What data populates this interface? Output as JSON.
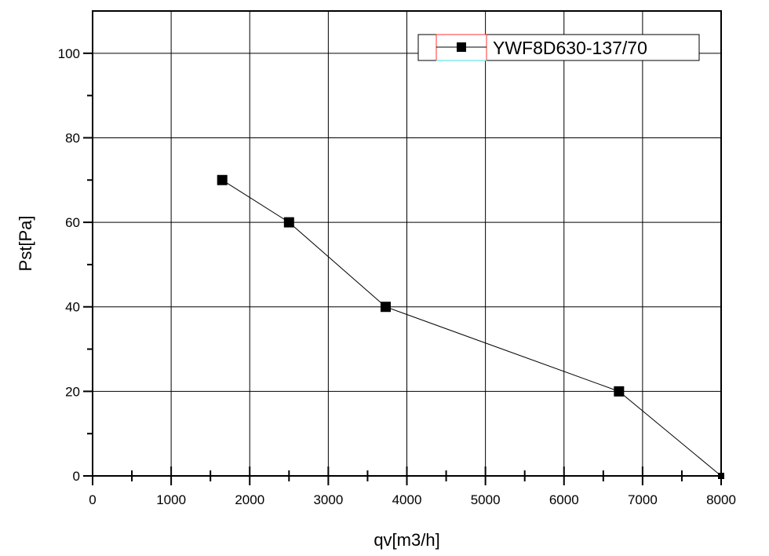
{
  "chart_data": {
    "type": "line",
    "title": "",
    "xlabel": "qv[m3/h]",
    "ylabel": "Pst[Pa]",
    "xlim": [
      0,
      8000
    ],
    "ylim": [
      0,
      110
    ],
    "x_major_ticks": [
      0,
      1000,
      2000,
      3000,
      4000,
      5000,
      6000,
      7000,
      8000
    ],
    "x_minor_step": 500,
    "y_major_ticks": [
      0,
      20,
      40,
      60,
      80,
      100
    ],
    "y_minor_step": 10,
    "grid": true,
    "legend_position": "top-right",
    "series": [
      {
        "name": "YWF8D630-137/70",
        "marker": "square",
        "color": "#000000",
        "x": [
          1650,
          2500,
          3730,
          6700,
          8000
        ],
        "y": [
          70,
          60,
          40,
          20,
          0
        ]
      }
    ]
  }
}
